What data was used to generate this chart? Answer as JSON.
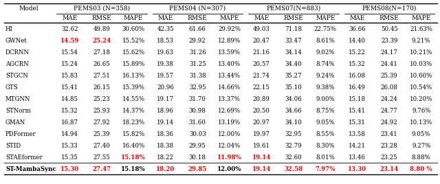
{
  "col_groups": [
    "PEMS03 (N=358)",
    "PEMS04 (N=307)",
    "PEMS07(N=883)",
    "PEMS08(N=170)"
  ],
  "sub_cols": [
    "MAE",
    "RMSE",
    "MAPE"
  ],
  "models": [
    "HI",
    "GWNet",
    "DCRNN",
    "AGCRN",
    "STGCN",
    "GTS",
    "MTGNN",
    "STNorm",
    "GMAN",
    "PDFormer",
    "STID",
    "STAEformer",
    "ST-MambaSync"
  ],
  "table_data": [
    [
      [
        "32.62",
        "49.89",
        "30.60%"
      ],
      [
        "42.35",
        "61.66",
        "29.92%"
      ],
      [
        "49.03",
        "71.18",
        "22.75%"
      ],
      [
        "36.66",
        "50.45",
        "21.63%"
      ]
    ],
    [
      [
        "14.59",
        "25.24",
        "15.52%"
      ],
      [
        "18.53",
        "29.92",
        "12.89%"
      ],
      [
        "20.47",
        "33.47",
        "8.61%"
      ],
      [
        "14.40",
        "23.39",
        "9.21%"
      ]
    ],
    [
      [
        "15.54",
        "27.18",
        "15.62%"
      ],
      [
        "19.63",
        "31.26",
        "13.59%"
      ],
      [
        "21.16",
        "34.14",
        "9.02%"
      ],
      [
        "15.22",
        "24.17",
        "10.21%"
      ]
    ],
    [
      [
        "15.24",
        "26.65",
        "15.89%"
      ],
      [
        "19.38",
        "31.25",
        "13.40%"
      ],
      [
        "20.57",
        "34.40",
        "8.74%"
      ],
      [
        "15.32",
        "24.41",
        "10.03%"
      ]
    ],
    [
      [
        "15.83",
        "27.51",
        "16.13%"
      ],
      [
        "19.57",
        "31.38",
        "13.44%"
      ],
      [
        "21.74",
        "35.27",
        "9.24%"
      ],
      [
        "16.08",
        "25.39",
        "10.60%"
      ]
    ],
    [
      [
        "15.41",
        "26.15",
        "15.39%"
      ],
      [
        "20.96",
        "32.95",
        "14.66%"
      ],
      [
        "22.15",
        "35.10",
        "9.38%"
      ],
      [
        "16.49",
        "26.08",
        "10.54%"
      ]
    ],
    [
      [
        "14.85",
        "25.23",
        "14.55%"
      ],
      [
        "19.17",
        "31.70",
        "13.37%"
      ],
      [
        "20.89",
        "34.06",
        "9.00%"
      ],
      [
        "15.18",
        "24.24",
        "10.20%"
      ]
    ],
    [
      [
        "15.32",
        "25.93",
        "14.37%"
      ],
      [
        "18.96",
        "30.98",
        "12.69%"
      ],
      [
        "20.50",
        "34.66",
        "8.75%"
      ],
      [
        "15.41",
        "24.77",
        "9.76%"
      ]
    ],
    [
      [
        "16.87",
        "27.92",
        "18.23%"
      ],
      [
        "19.14",
        "31.60",
        "13.19%"
      ],
      [
        "20.97",
        "34.10",
        "9.05%"
      ],
      [
        "15.31",
        "24.92",
        "10.13%"
      ]
    ],
    [
      [
        "14.94",
        "25.39",
        "15.82%"
      ],
      [
        "18.36",
        "30.03",
        "12.00%"
      ],
      [
        "19.97",
        "32.95",
        "8.55%"
      ],
      [
        "13.58",
        "23.41",
        "9.05%"
      ]
    ],
    [
      [
        "15.33",
        "27.40",
        "16.40%"
      ],
      [
        "18.38",
        "29.95",
        "12.04%"
      ],
      [
        "19.61",
        "32.79",
        "8.30%"
      ],
      [
        "14.21",
        "23.28",
        "9.27%"
      ]
    ],
    [
      [
        "15.35",
        "27.55",
        "15.18%"
      ],
      [
        "18.22",
        "30.18",
        "11.98%"
      ],
      [
        "19.14",
        "32.60",
        "8.01%"
      ],
      [
        "13.46",
        "23.25",
        "8.88%"
      ]
    ],
    [
      [
        "15.30",
        "27.47",
        "15.18%"
      ],
      [
        "18.20",
        "29.85",
        "12.00%"
      ],
      [
        "19.14",
        "32.58",
        "7.97%"
      ],
      [
        "13.30",
        "23.14",
        "8.80 %"
      ]
    ]
  ],
  "red_cells": [
    {},
    {
      "0": [
        0,
        1
      ]
    },
    {},
    {},
    {},
    {},
    {},
    {},
    {},
    {},
    {},
    {
      "0": [
        2
      ],
      "1": [
        2
      ],
      "2": [
        0
      ]
    },
    {
      "0": [
        0,
        1
      ],
      "1": [
        0,
        1
      ],
      "2": [
        0,
        1,
        2
      ],
      "3": [
        0,
        1,
        2
      ]
    }
  ],
  "background_color": "#ffffff"
}
